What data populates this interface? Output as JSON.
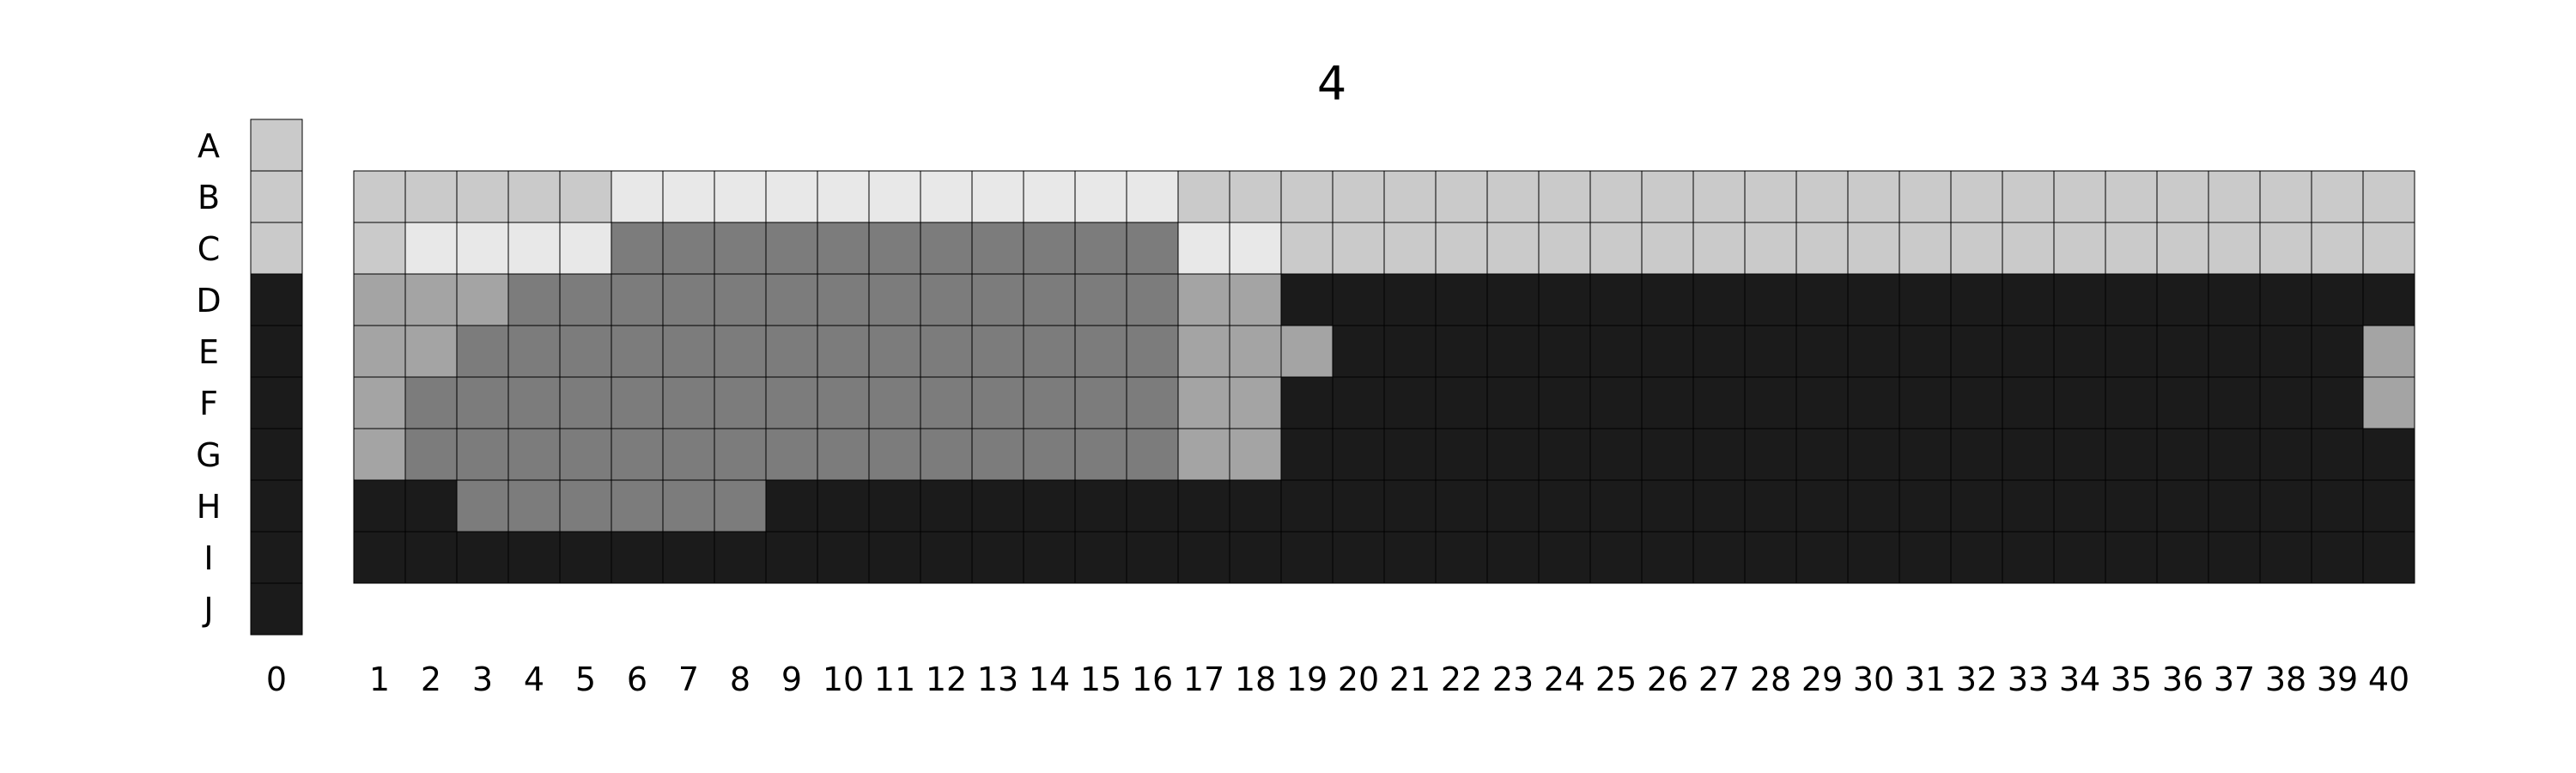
{
  "chart_data": {
    "type": "heatmap",
    "title": "4",
    "palette": {
      "L": "#e8e8e8",
      "S": "#cacaca",
      "M": "#a4a4a4",
      "D": "#7c7c7c",
      "K": "#1b1b1b"
    },
    "row_labels": [
      "A",
      "B",
      "C",
      "D",
      "E",
      "F",
      "G",
      "H",
      "I",
      "J"
    ],
    "column0": {
      "label": "0",
      "rows": [
        "S",
        "S",
        "S",
        "K",
        "K",
        "K",
        "K",
        "K",
        "K",
        "K"
      ]
    },
    "columns": [
      "1",
      "2",
      "3",
      "4",
      "5",
      "6",
      "7",
      "8",
      "9",
      "10",
      "11",
      "12",
      "13",
      "14",
      "15",
      "16",
      "17",
      "18",
      "19",
      "20",
      "21",
      "22",
      "23",
      "24",
      "25",
      "26",
      "27",
      "28",
      "29",
      "30",
      "31",
      "32",
      "33",
      "34",
      "35",
      "36",
      "37",
      "38",
      "39",
      "40"
    ],
    "grid_rows": [
      "B",
      "C",
      "D",
      "E",
      "F",
      "G",
      "H",
      "I"
    ],
    "grid": [
      "SSSSSLLLLLLLLLLLSSSSSSSSSSSSSSSSSSSSSSSS",
      "SLLLLDDDDDDDDDDDLLSSSSSSSSSSSSSSSSSSSSSS",
      "MMMDDDDDDDDDDDDDMMKKKKKKKKKKKKKKKKKKKKKK",
      "MMDDDDDDDDDDDDDDMMMKKKKKKKKKKKKKKKKKKKKM",
      "MDDDDDDDDDDDDDDDMMKKKKKKKKKKKKKKKKKKKKKM",
      "MDDDDDDDDDDDDDDDMMKKKKKKKKKKKKKKKKKKKKKK",
      "KKDDDDDDKKKKKKKKKKKKKKKKKKKKKKKKKKKKKKKK",
      "KKKKKKKKKKKKKKKKKKKKKKKKKKKKKKKKKKKKKKKK"
    ]
  }
}
